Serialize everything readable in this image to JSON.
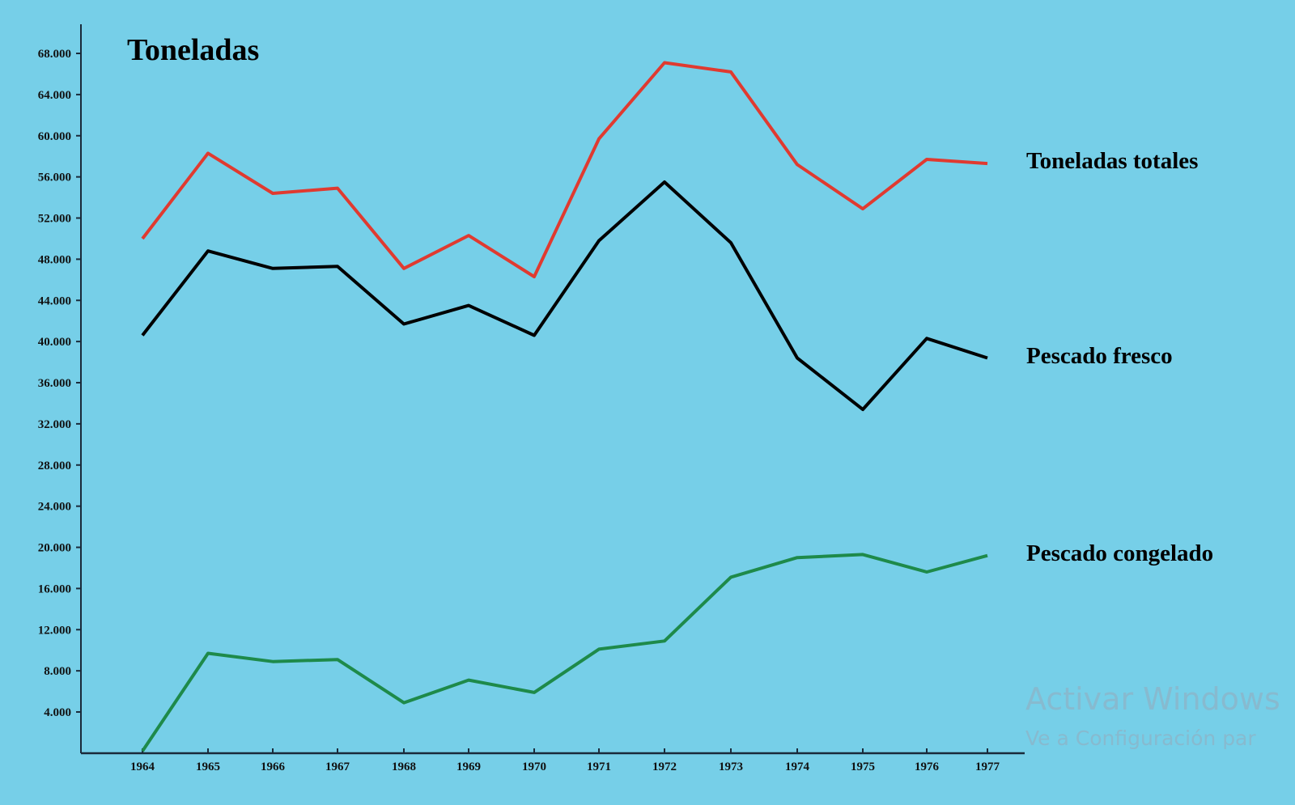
{
  "chart_data": {
    "type": "line",
    "title": "Toneladas",
    "xlabel": "",
    "ylabel": "",
    "categories": [
      "1964",
      "1965",
      "1966",
      "1967",
      "1968",
      "1969",
      "1970",
      "1971",
      "1972",
      "1973",
      "1974",
      "1975",
      "1976",
      "1977"
    ],
    "yticks": [
      "4.000",
      "8.000",
      "12.000",
      "16.000",
      "20.000",
      "24.000",
      "28.000",
      "32.000",
      "36.000",
      "40.000",
      "44.000",
      "48.000",
      "52.000",
      "56.000",
      "60.000",
      "64.000",
      "68.000"
    ],
    "ylim": [
      0,
      70000
    ],
    "grid": false,
    "legend": "right (inline labels)",
    "series": [
      {
        "name": "Toneladas totales",
        "color": "#e03a30",
        "values": [
          50000,
          58300,
          54400,
          54900,
          47100,
          50300,
          46300,
          59700,
          67100,
          66200,
          57200,
          52900,
          57700,
          57300
        ]
      },
      {
        "name": "Pescado fresco",
        "color": "#000000",
        "values": [
          40600,
          48800,
          47100,
          47300,
          41700,
          43500,
          40600,
          49800,
          55500,
          49600,
          38400,
          33400,
          40300,
          38400
        ]
      },
      {
        "name": "Pescado congelado",
        "color": "#1e8a4a",
        "values": [
          200,
          9700,
          8900,
          9100,
          4900,
          7100,
          5900,
          10100,
          10900,
          17100,
          19000,
          19300,
          17600,
          19200
        ]
      }
    ]
  },
  "watermark": {
    "line1": "Activar Windows",
    "line2": "Ve a Configuración par"
  },
  "colors": {
    "background": "#76cfe8"
  }
}
